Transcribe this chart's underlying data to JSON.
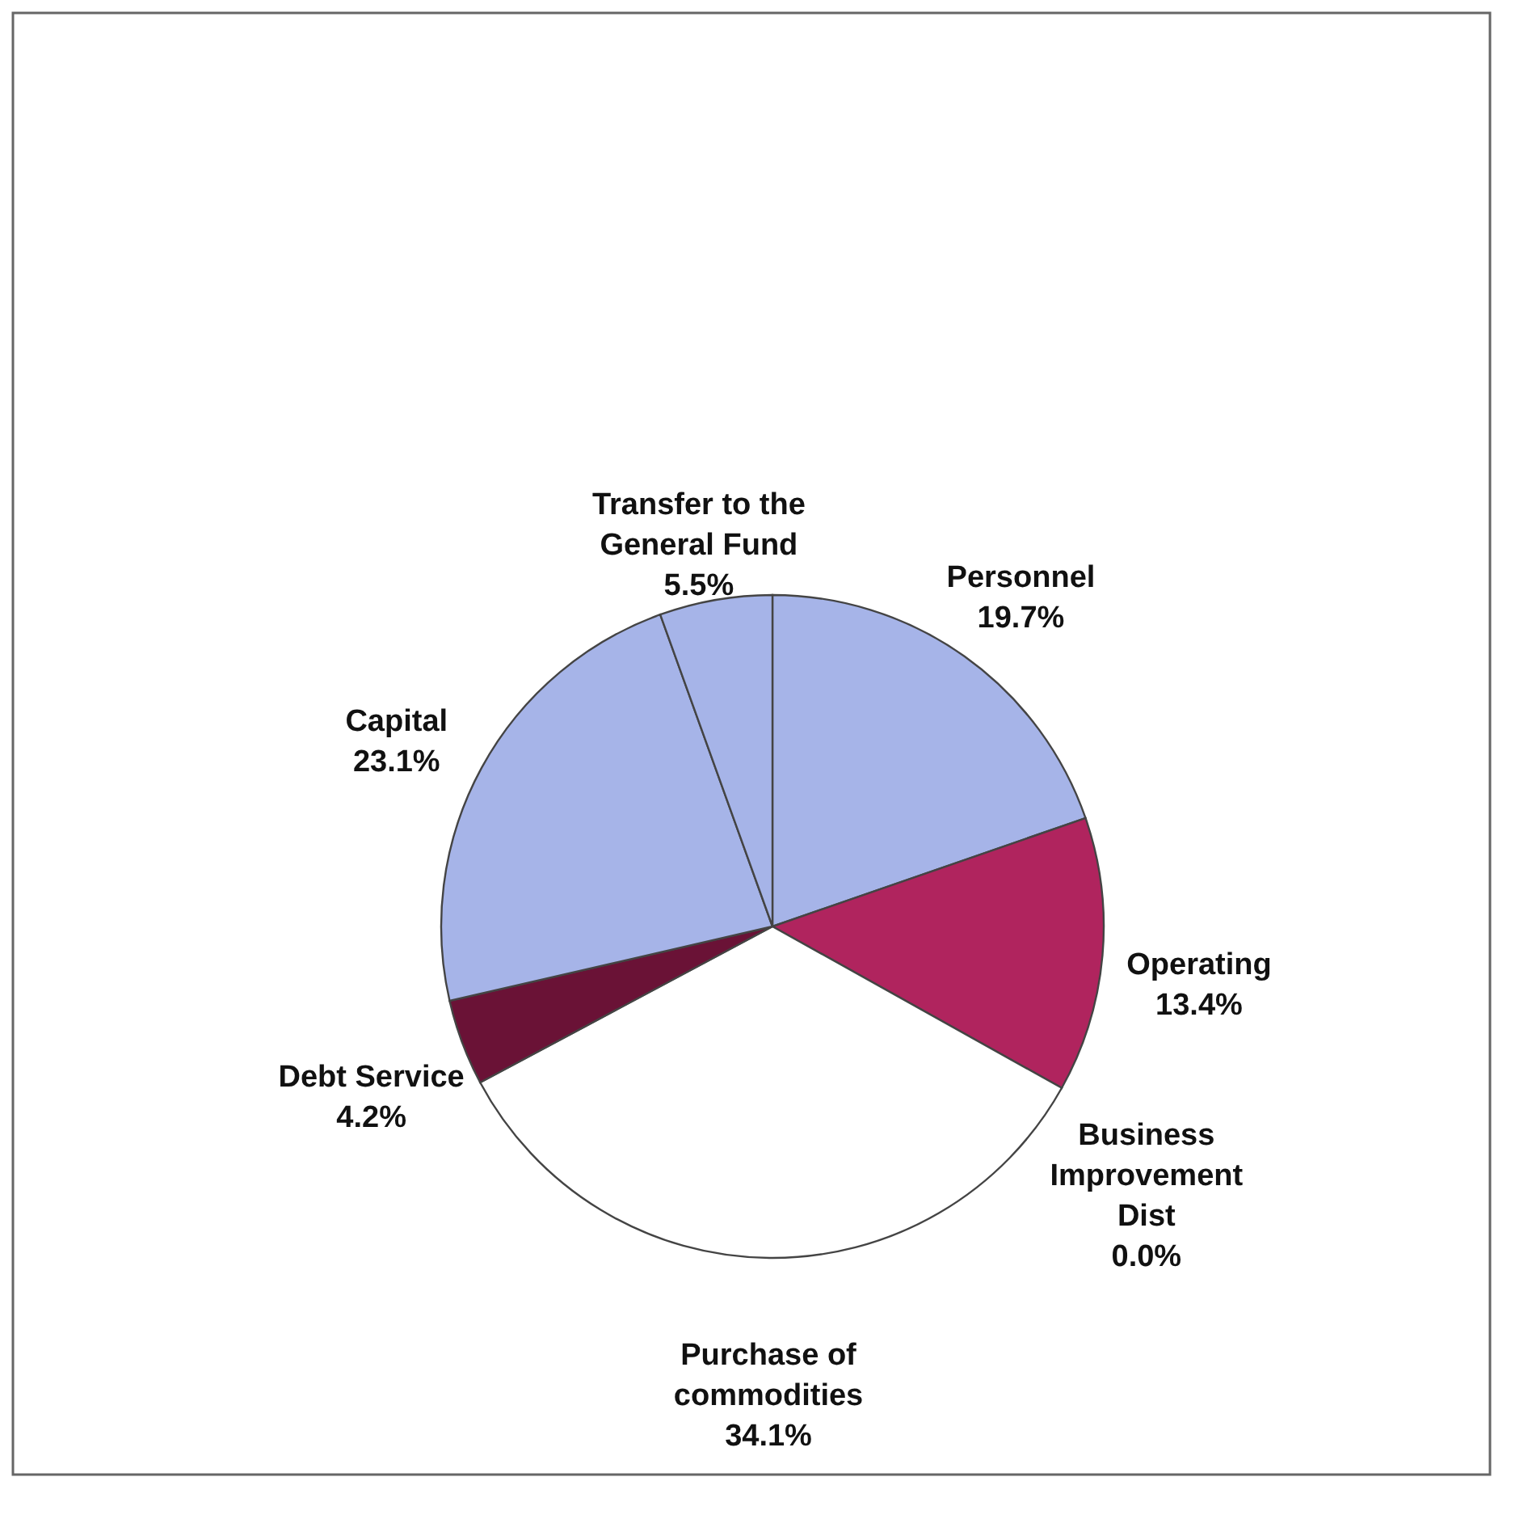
{
  "chart_data": {
    "type": "pie",
    "categories": [
      "Personnel",
      "Operating",
      "Business Improvement Dist",
      "Purchase of commodities",
      "Debt Service",
      "Capital",
      "Transfer to the General Fund"
    ],
    "values": [
      19.7,
      13.4,
      0.0,
      34.1,
      4.2,
      23.1,
      5.5
    ],
    "colors": [
      "#a6b4e8",
      "#b0245e",
      "#c02060",
      "#ffffff",
      "#6a1236",
      "#a6b4e8",
      "#a6b4e8"
    ],
    "value_labels": [
      "19.7%",
      "13.4%",
      "0.0%",
      "34.1%",
      "4.2%",
      "23.1%",
      "5.5%"
    ],
    "legend": false
  }
}
